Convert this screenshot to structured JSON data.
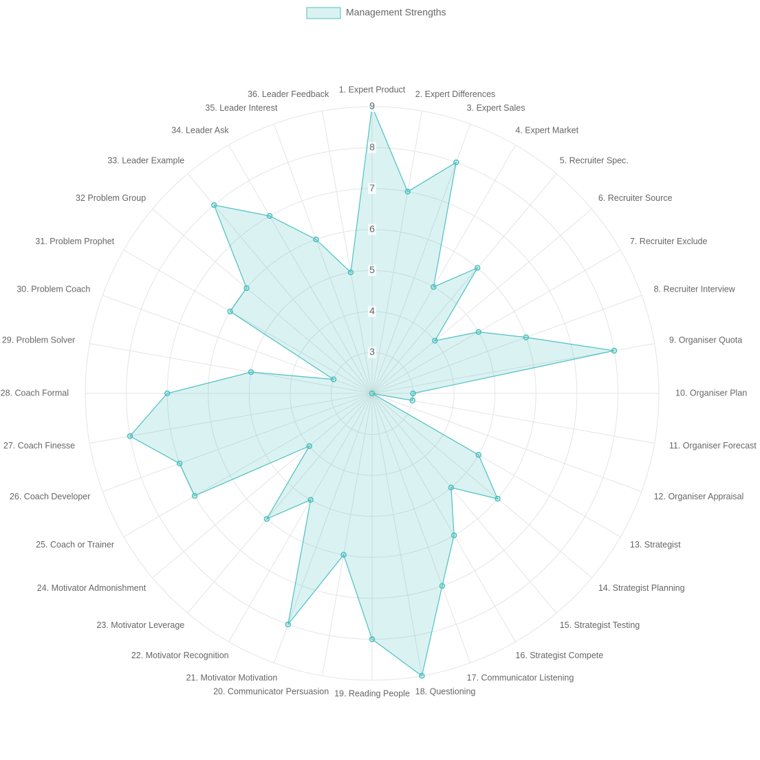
{
  "chart_data": {
    "type": "radar",
    "categories": [
      "1. Expert Product",
      "2. Expert Differences",
      "3. Expert Sales",
      "4. Expert Market",
      "5. Recruiter Spec.",
      "6. Recruiter Source",
      "7. Recruiter Exclude",
      "8. Recruiter Interview",
      "9. Organiser Quota",
      "10. Organiser Plan",
      "11. Organiser Forecast",
      "12. Organiser Appraisal",
      "13. Strategist",
      "14. Strategist Planning",
      "15. Strategist Testing",
      "16. Strategist Compete",
      "17. Communicator Listening",
      "18. Questioning",
      "19. Reading People",
      "20. Communicator Persuasion",
      "21. Motivator Motivation",
      "22. Motivator Recognition",
      "23. Motivator Leverage",
      "24. Motivator Admonishment",
      "25. Coach or Trainer",
      "26. Coach Developer",
      "27. Coach Finesse",
      "28. Coach Formal",
      "29. Problem Solver",
      "30. Problem Coach",
      "31. Problem Prophet",
      "32 Problem Group",
      "33. Leader Example",
      "34. Leader Ask",
      "35. Leader Interest",
      "36. Leader Feedback"
    ],
    "series": [
      {
        "name": "Management Strengths",
        "color": "#4bc0c0",
        "values": [
          9,
          7,
          8,
          5,
          6,
          4,
          5,
          6,
          8,
          3,
          3,
          2,
          5,
          6,
          5,
          6,
          7,
          9,
          8,
          6,
          8,
          5,
          6,
          4,
          7,
          7,
          8,
          7,
          5,
          3,
          6,
          6,
          8,
          7,
          6,
          5
        ]
      }
    ],
    "ylim": [
      2,
      9
    ],
    "yticks": [
      3,
      4,
      5,
      6,
      7,
      8,
      9
    ],
    "grid": true,
    "legend": "top"
  }
}
